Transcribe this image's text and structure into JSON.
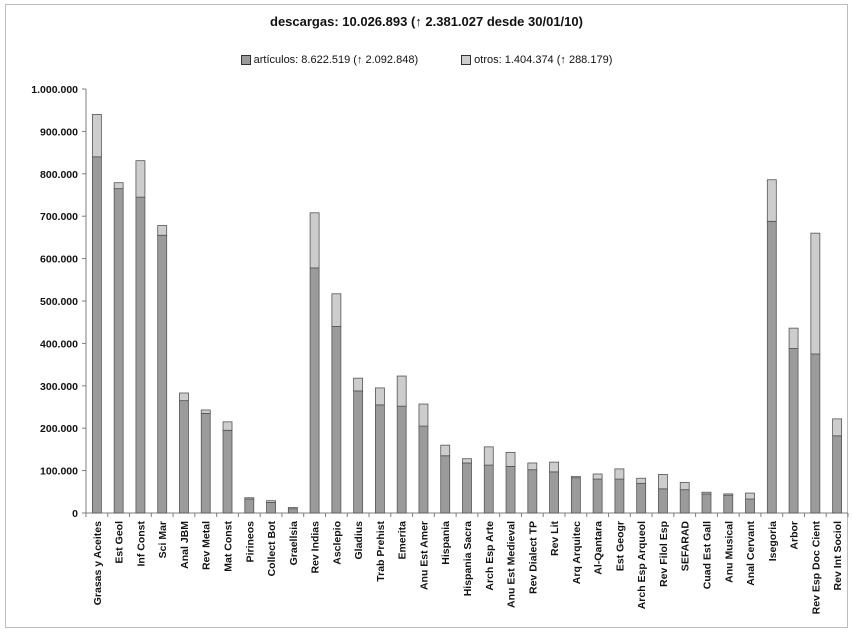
{
  "chart_data": {
    "type": "bar",
    "stacked": true,
    "title": "descargas: 10.026.893 (↑ 2.381.027 desde 30/01/10)",
    "legend_position": "top",
    "ylim": [
      0,
      1000000
    ],
    "yticks": [
      "0",
      "100.000",
      "200.000",
      "300.000",
      "400.000",
      "500.000",
      "600.000",
      "700.000",
      "800.000",
      "900.000",
      "1.000.000"
    ],
    "grid": false,
    "categories": [
      "Grasas y Aceites",
      "Est Geol",
      "Inf Const",
      "Sci Mar",
      "Anal JBM",
      "Rev Metal",
      "Mat Const",
      "Pirineos",
      "Collect Bot",
      "Graellsia",
      "Rev Indias",
      "Asclepio",
      "Gladius",
      "Trab Prehist",
      "Emerita",
      "Anu Est Amer",
      "Hispania",
      "Hispania Sacra",
      "Arch Esp Arte",
      "Anu Est Medieval",
      "Rev Dialect TP",
      "Rev Lit",
      "Arq Arquitec",
      "Al-Qantara",
      "Est Geogr",
      "Arch Esp Arqueol",
      "Rev Filol Esp",
      "SEFARAD",
      "Cuad Est Gall",
      "Anu Musical",
      "Anal Cervant",
      "Isegoria",
      "Arbor",
      "Rev Esp Doc Cient",
      "Rev Int Sociol"
    ],
    "series": [
      {
        "name": "artículos: 8.622.519 (↑ 2.092.848)",
        "color": "#9b9b9b",
        "values": [
          840000,
          765000,
          745000,
          655000,
          265000,
          235000,
          195000,
          33000,
          25000,
          10000,
          578000,
          440000,
          288000,
          255000,
          252000,
          205000,
          135000,
          118000,
          113000,
          110000,
          102000,
          97000,
          83000,
          80000,
          80000,
          70000,
          57000,
          55000,
          45000,
          42000,
          33000,
          688000,
          388000,
          375000,
          182000
        ]
      },
      {
        "name": "otros: 1.404.374 (↑ 288.179)",
        "color": "#cdcdcd",
        "values": [
          100000,
          14000,
          86000,
          23000,
          18000,
          8000,
          20000,
          3000,
          4000,
          3000,
          130000,
          77000,
          30000,
          40000,
          71000,
          52000,
          25000,
          10000,
          43000,
          33000,
          16000,
          23000,
          3000,
          12000,
          24000,
          12000,
          34000,
          17000,
          4000,
          3000,
          14000,
          98000,
          48000,
          285000,
          40000
        ]
      }
    ]
  }
}
